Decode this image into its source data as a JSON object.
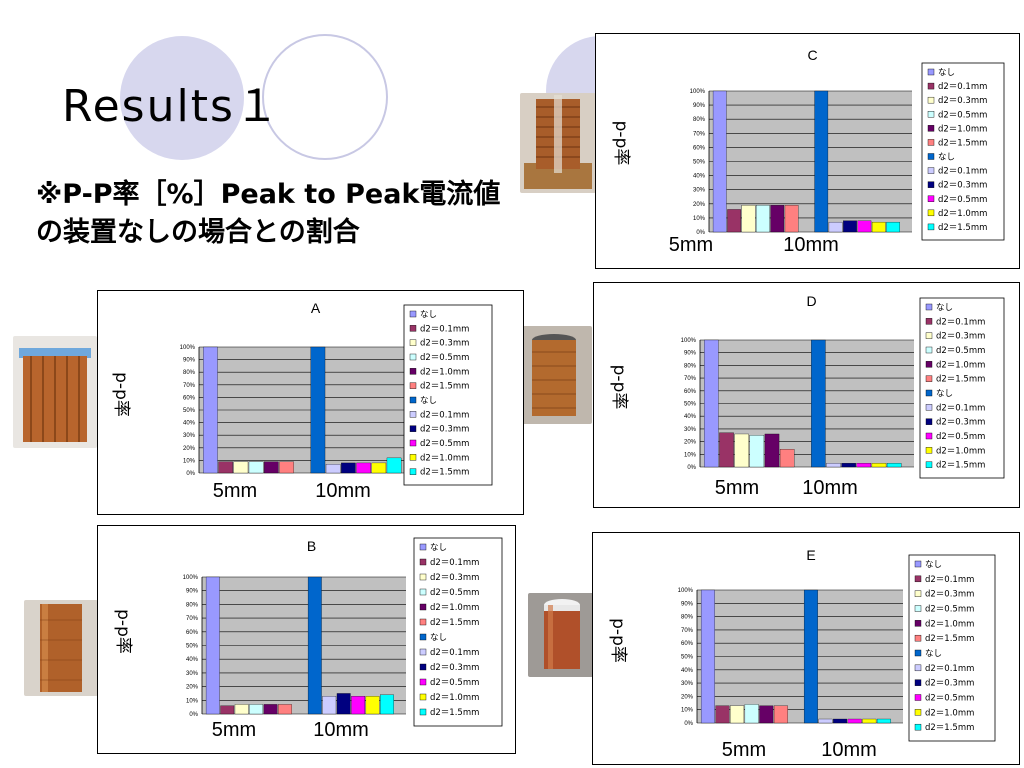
{
  "slide": {
    "title": "Results１",
    "subtitle": "※P-P率［%］Peak to Peak電流値の装置なしの場合との割合"
  },
  "colors": {
    "circle_fill": "#d7d7ee",
    "circle_outline": "#c8c8e4",
    "plot_bg": "#c0c0c0",
    "gridline": "#000000"
  },
  "chart_data": [
    {
      "id": "C",
      "type": "bar",
      "title": "C",
      "ylabel": "p-p率",
      "categories": [
        "5mm",
        "10mm"
      ],
      "yticks": [
        "100%",
        "90%",
        "80%",
        "70%",
        "60%",
        "50%",
        "40%",
        "30%",
        "20%",
        "10%",
        "0%"
      ],
      "ylim": [
        0,
        100
      ],
      "grid": true,
      "legend_position": "right",
      "series": [
        {
          "name": "なし",
          "color": "#9999ff",
          "values": [
            100,
            null
          ]
        },
        {
          "name": "d2＝0.1mm",
          "color": "#993366",
          "values": [
            16,
            null
          ]
        },
        {
          "name": "d2＝0.3mm",
          "color": "#ffffcc",
          "values": [
            19,
            null
          ]
        },
        {
          "name": "d2＝0.5mm",
          "color": "#ccffff",
          "values": [
            19,
            null
          ]
        },
        {
          "name": "d2＝1.0mm",
          "color": "#660066",
          "values": [
            19,
            null
          ]
        },
        {
          "name": "d2＝1.5mm",
          "color": "#ff8080",
          "values": [
            19,
            null
          ]
        },
        {
          "name": "なし",
          "color": "#0066cc",
          "values": [
            null,
            100
          ]
        },
        {
          "name": "d2＝0.1mm",
          "color": "#ccccff",
          "values": [
            null,
            7
          ]
        },
        {
          "name": "d2＝0.3mm",
          "color": "#000080",
          "values": [
            null,
            8
          ]
        },
        {
          "name": "d2＝0.5mm",
          "color": "#ff00ff",
          "values": [
            null,
            8
          ]
        },
        {
          "name": "d2＝1.0mm",
          "color": "#ffff00",
          "values": [
            null,
            7
          ]
        },
        {
          "name": "d2＝1.5mm",
          "color": "#00ffff",
          "values": [
            null,
            7
          ]
        }
      ]
    },
    {
      "id": "A",
      "type": "bar",
      "title": "A",
      "ylabel": "p-p率",
      "categories": [
        "5mm",
        "10mm"
      ],
      "yticks": [
        "100%",
        "90%",
        "80%",
        "70%",
        "60%",
        "50%",
        "40%",
        "30%",
        "20%",
        "10%",
        "0%"
      ],
      "ylim": [
        0,
        100
      ],
      "grid": true,
      "legend_position": "right",
      "series": [
        {
          "name": "なし",
          "color": "#9999ff",
          "values": [
            100,
            null
          ]
        },
        {
          "name": "d2＝0.1mm",
          "color": "#993366",
          "values": [
            9,
            null
          ]
        },
        {
          "name": "d2＝0.3mm",
          "color": "#ffffcc",
          "values": [
            9,
            null
          ]
        },
        {
          "name": "d2＝0.5mm",
          "color": "#ccffff",
          "values": [
            9,
            null
          ]
        },
        {
          "name": "d2＝1.0mm",
          "color": "#660066",
          "values": [
            9,
            null
          ]
        },
        {
          "name": "d2＝1.5mm",
          "color": "#ff8080",
          "values": [
            9,
            null
          ]
        },
        {
          "name": "なし",
          "color": "#0066cc",
          "values": [
            null,
            100
          ]
        },
        {
          "name": "d2＝0.1mm",
          "color": "#ccccff",
          "values": [
            null,
            7
          ]
        },
        {
          "name": "d2＝0.3mm",
          "color": "#000080",
          "values": [
            null,
            8
          ]
        },
        {
          "name": "d2＝0.5mm",
          "color": "#ff00ff",
          "values": [
            null,
            8
          ]
        },
        {
          "name": "d2＝1.0mm",
          "color": "#ffff00",
          "values": [
            null,
            8
          ]
        },
        {
          "name": "d2＝1.5mm",
          "color": "#00ffff",
          "values": [
            null,
            12
          ]
        }
      ]
    },
    {
      "id": "D",
      "type": "bar",
      "title": "D",
      "ylabel": "p-p率",
      "categories": [
        "5mm",
        "10mm"
      ],
      "yticks": [
        "100%",
        "90%",
        "80%",
        "70%",
        "60%",
        "50%",
        "40%",
        "30%",
        "20%",
        "10%",
        "0%"
      ],
      "ylim": [
        0,
        100
      ],
      "grid": true,
      "legend_position": "right",
      "series": [
        {
          "name": "なし",
          "color": "#9999ff",
          "values": [
            100,
            null
          ]
        },
        {
          "name": "d2＝0.1mm",
          "color": "#993366",
          "values": [
            27,
            null
          ]
        },
        {
          "name": "d2＝0.3mm",
          "color": "#ffffcc",
          "values": [
            26,
            null
          ]
        },
        {
          "name": "d2＝0.5mm",
          "color": "#ccffff",
          "values": [
            25,
            null
          ]
        },
        {
          "name": "d2＝1.0mm",
          "color": "#660066",
          "values": [
            26,
            null
          ]
        },
        {
          "name": "d2＝1.5mm",
          "color": "#ff8080",
          "values": [
            14,
            null
          ]
        },
        {
          "name": "なし",
          "color": "#0066cc",
          "values": [
            null,
            100
          ]
        },
        {
          "name": "d2＝0.1mm",
          "color": "#ccccff",
          "values": [
            null,
            3
          ]
        },
        {
          "name": "d2＝0.3mm",
          "color": "#000080",
          "values": [
            null,
            3
          ]
        },
        {
          "name": "d2＝0.5mm",
          "color": "#ff00ff",
          "values": [
            null,
            3
          ]
        },
        {
          "name": "d2＝1.0mm",
          "color": "#ffff00",
          "values": [
            null,
            3
          ]
        },
        {
          "name": "d2＝1.5mm",
          "color": "#00ffff",
          "values": [
            null,
            3
          ]
        }
      ]
    },
    {
      "id": "B",
      "type": "bar",
      "title": "B",
      "ylabel": "p-p率",
      "categories": [
        "5mm",
        "10mm"
      ],
      "yticks": [
        "100%",
        "90%",
        "80%",
        "70%",
        "60%",
        "50%",
        "40%",
        "30%",
        "20%",
        "10%",
        "0%"
      ],
      "ylim": [
        0,
        100
      ],
      "grid": true,
      "legend_position": "right",
      "series": [
        {
          "name": "なし",
          "color": "#9999ff",
          "values": [
            100,
            null
          ]
        },
        {
          "name": "d2＝0.1mm",
          "color": "#993366",
          "values": [
            6,
            null
          ]
        },
        {
          "name": "d2＝0.3mm",
          "color": "#ffffcc",
          "values": [
            7,
            null
          ]
        },
        {
          "name": "d2＝0.5mm",
          "color": "#ccffff",
          "values": [
            7,
            null
          ]
        },
        {
          "name": "d2＝1.0mm",
          "color": "#660066",
          "values": [
            7,
            null
          ]
        },
        {
          "name": "d2＝1.5mm",
          "color": "#ff8080",
          "values": [
            7,
            null
          ]
        },
        {
          "name": "なし",
          "color": "#0066cc",
          "values": [
            null,
            100
          ]
        },
        {
          "name": "d2＝0.1mm",
          "color": "#ccccff",
          "values": [
            null,
            13
          ]
        },
        {
          "name": "d2＝0.3mm",
          "color": "#000080",
          "values": [
            null,
            15
          ]
        },
        {
          "name": "d2＝0.5mm",
          "color": "#ff00ff",
          "values": [
            null,
            13
          ]
        },
        {
          "name": "d2＝1.0mm",
          "color": "#ffff00",
          "values": [
            null,
            13
          ]
        },
        {
          "name": "d2＝1.5mm",
          "color": "#00ffff",
          "values": [
            null,
            14
          ]
        }
      ]
    },
    {
      "id": "E",
      "type": "bar",
      "title": "E",
      "ylabel": "p-p率",
      "categories": [
        "5mm",
        "10mm"
      ],
      "yticks": [
        "100%",
        "90%",
        "80%",
        "70%",
        "60%",
        "50%",
        "40%",
        "30%",
        "20%",
        "10%",
        "0%"
      ],
      "ylim": [
        0,
        100
      ],
      "grid": true,
      "legend_position": "right",
      "series": [
        {
          "name": "なし",
          "color": "#9999ff",
          "values": [
            100,
            null
          ]
        },
        {
          "name": "d2＝0.1mm",
          "color": "#993366",
          "values": [
            13,
            null
          ]
        },
        {
          "name": "d2＝0.3mm",
          "color": "#ffffcc",
          "values": [
            13,
            null
          ]
        },
        {
          "name": "d2＝0.5mm",
          "color": "#ccffff",
          "values": [
            14,
            null
          ]
        },
        {
          "name": "d2＝1.0mm",
          "color": "#660066",
          "values": [
            13,
            null
          ]
        },
        {
          "name": "d2＝1.5mm",
          "color": "#ff8080",
          "values": [
            13,
            null
          ]
        },
        {
          "name": "なし",
          "color": "#0066cc",
          "values": [
            null,
            100
          ]
        },
        {
          "name": "d2＝0.1mm",
          "color": "#ccccff",
          "values": [
            null,
            3
          ]
        },
        {
          "name": "d2＝0.3mm",
          "color": "#000080",
          "values": [
            null,
            3
          ]
        },
        {
          "name": "d2＝0.5mm",
          "color": "#ff00ff",
          "values": [
            null,
            3
          ]
        },
        {
          "name": "d2＝1.0mm",
          "color": "#ffff00",
          "values": [
            null,
            3
          ]
        },
        {
          "name": "d2＝1.5mm",
          "color": "#00ffff",
          "values": [
            null,
            3
          ]
        }
      ]
    }
  ]
}
